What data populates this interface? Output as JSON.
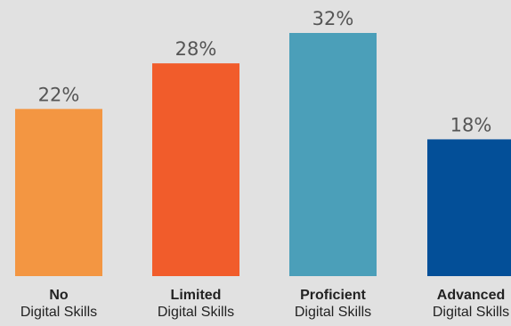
{
  "chart_data": {
    "type": "bar",
    "title": "",
    "xlabel": "",
    "ylabel": "",
    "ylim": [
      0,
      32
    ],
    "categories": [
      {
        "line1": "No",
        "line2": "Digital Skills"
      },
      {
        "line1": "Limited",
        "line2": "Digital Skills"
      },
      {
        "line1": "Proficient",
        "line2": "Digital Skills"
      },
      {
        "line1": "Advanced",
        "line2": "Digital Skills"
      }
    ],
    "values": [
      22,
      28,
      32,
      18
    ],
    "value_labels": [
      "22%",
      "28%",
      "32%",
      "18%"
    ],
    "colors": [
      "#f39642",
      "#f15c2b",
      "#4b9fb9",
      "#034f98"
    ],
    "background": "#e1e1e1",
    "grid": false,
    "legend": "none"
  }
}
